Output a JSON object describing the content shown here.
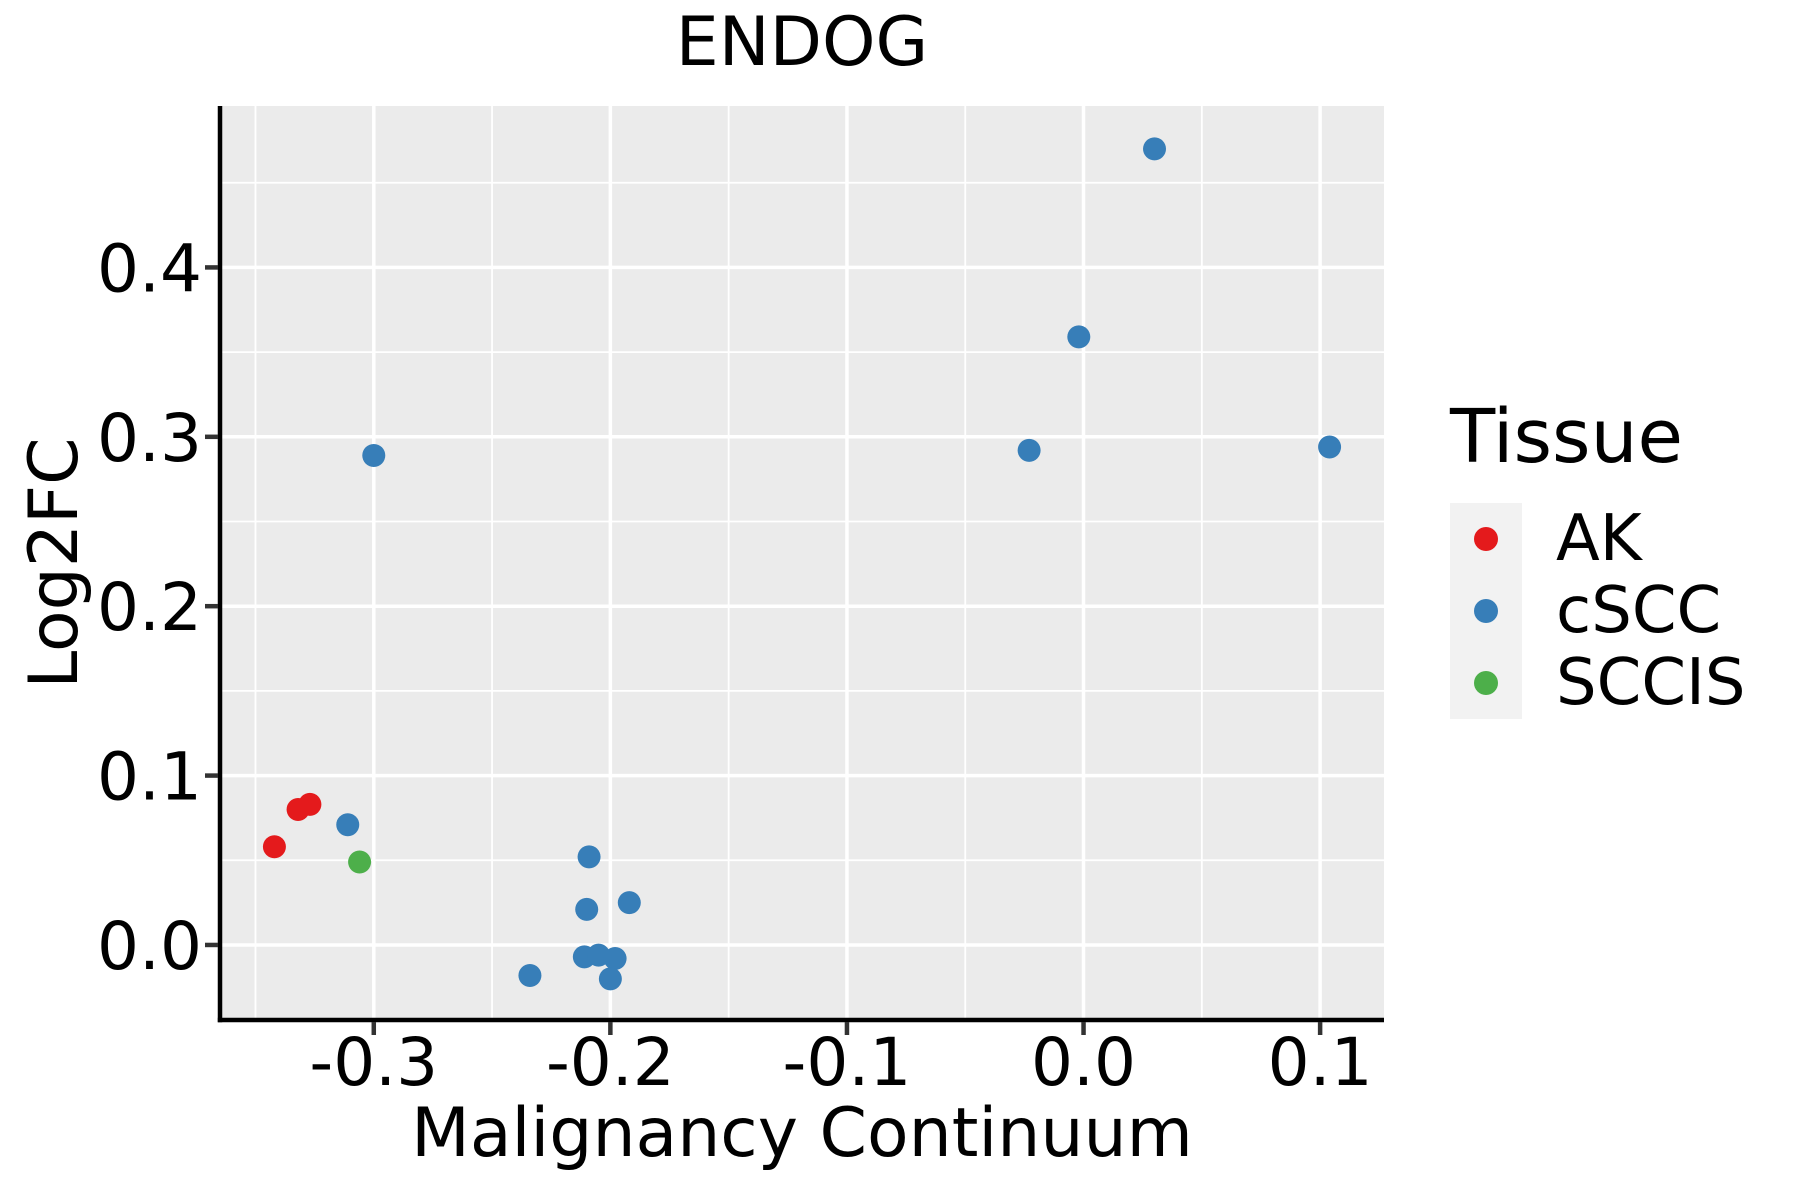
{
  "chart_data": {
    "type": "scatter",
    "title": "ENDOG",
    "xlabel": "Malignancy Continuum",
    "ylabel": "Log2FC",
    "xlim": [
      -0.365,
      0.127
    ],
    "ylim": [
      -0.0443,
      0.4953
    ],
    "x_major_ticks": [
      -0.3,
      -0.2,
      -0.1,
      0.0,
      0.1
    ],
    "x_tick_labels": [
      "-0.3",
      "-0.2",
      "-0.1",
      "0.0",
      "0.1"
    ],
    "x_minor_ticks": [
      -0.35,
      -0.25,
      -0.15,
      -0.05,
      0.05
    ],
    "y_major_ticks": [
      0.0,
      0.1,
      0.2,
      0.3,
      0.4
    ],
    "y_tick_labels": [
      "0.0",
      "0.1",
      "0.2",
      "0.3",
      "0.4"
    ],
    "y_minor_ticks": [
      0.05,
      0.15,
      0.25,
      0.35,
      0.45
    ],
    "grid_major": true,
    "grid_minor": true,
    "panel_bg": "#EBEBEB",
    "grid_color": "#FFFFFF",
    "axis_line_color": "#000000",
    "tick_color": "#333333",
    "legend": {
      "title": "Tissue",
      "position": "right",
      "key_bg": "#F2F2F2"
    },
    "series": [
      {
        "name": "AK",
        "color": "#E41A1C",
        "points": [
          [
            -0.342,
            0.058
          ],
          [
            -0.332,
            0.08
          ],
          [
            -0.327,
            0.083
          ]
        ]
      },
      {
        "name": "cSCC",
        "color": "#377EB8",
        "points": [
          [
            -0.3,
            0.289
          ],
          [
            -0.311,
            0.071
          ],
          [
            -0.234,
            -0.018
          ],
          [
            -0.211,
            -0.007
          ],
          [
            -0.205,
            -0.006
          ],
          [
            -0.198,
            -0.008
          ],
          [
            -0.2,
            -0.02
          ],
          [
            -0.209,
            0.052
          ],
          [
            -0.21,
            0.021
          ],
          [
            -0.192,
            0.025
          ],
          [
            -0.023,
            0.292
          ],
          [
            -0.002,
            0.359
          ],
          [
            0.03,
            0.47
          ],
          [
            0.104,
            0.294
          ]
        ]
      },
      {
        "name": "SCCIS",
        "color": "#4DAF4A",
        "points": [
          [
            -0.306,
            0.049
          ]
        ]
      }
    ]
  }
}
